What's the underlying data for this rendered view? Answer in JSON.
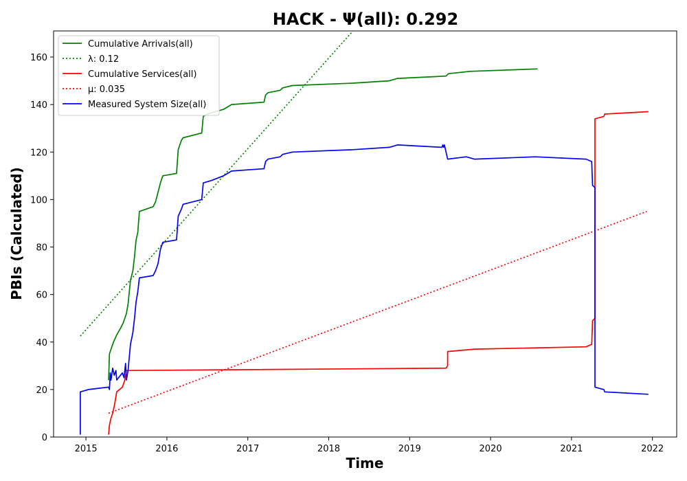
{
  "chart_data": {
    "type": "line",
    "title": "HACK -  Ψ(all): 0.292",
    "xlabel": "Time",
    "ylabel": "PBIs (Calculated)",
    "xlim": [
      2014.6,
      2022.3
    ],
    "ylim": [
      0,
      171
    ],
    "x_ticks": [
      2015,
      2016,
      2017,
      2018,
      2019,
      2020,
      2021,
      2022
    ],
    "y_ticks": [
      0,
      20,
      40,
      60,
      80,
      100,
      120,
      140,
      160
    ],
    "legend": "top-left",
    "grid": false,
    "series": [
      {
        "name": "Cumulative Arrivals(all)",
        "color": "#008000",
        "style": "solid",
        "points": [
          [
            2015.28,
            24
          ],
          [
            2015.29,
            35
          ],
          [
            2015.32,
            38
          ],
          [
            2015.34,
            40
          ],
          [
            2015.38,
            43
          ],
          [
            2015.43,
            46
          ],
          [
            2015.46,
            48
          ],
          [
            2015.5,
            52
          ],
          [
            2015.52,
            56
          ],
          [
            2015.55,
            66
          ],
          [
            2015.58,
            70
          ],
          [
            2015.6,
            76
          ],
          [
            2015.62,
            83
          ],
          [
            2015.64,
            86
          ],
          [
            2015.66,
            95
          ],
          [
            2015.83,
            97
          ],
          [
            2015.86,
            99
          ],
          [
            2015.89,
            103
          ],
          [
            2015.92,
            107
          ],
          [
            2015.95,
            110
          ],
          [
            2016.12,
            111
          ],
          [
            2016.14,
            121
          ],
          [
            2016.18,
            125
          ],
          [
            2016.2,
            126
          ],
          [
            2016.43,
            128
          ],
          [
            2016.45,
            135
          ],
          [
            2016.5,
            136
          ],
          [
            2016.7,
            138
          ],
          [
            2016.8,
            140
          ],
          [
            2017.2,
            141
          ],
          [
            2017.22,
            144
          ],
          [
            2017.25,
            145
          ],
          [
            2017.4,
            146
          ],
          [
            2017.43,
            147
          ],
          [
            2017.55,
            148
          ],
          [
            2018.3,
            149
          ],
          [
            2018.75,
            150
          ],
          [
            2018.85,
            151
          ],
          [
            2019.45,
            152
          ],
          [
            2019.48,
            153
          ],
          [
            2019.75,
            154
          ],
          [
            2020.58,
            155
          ]
        ]
      },
      {
        "name": "λ: 0.12",
        "color": "#008000",
        "style": "dotted",
        "points": [
          [
            2014.93,
            42.5
          ],
          [
            2018.3,
            171
          ]
        ]
      },
      {
        "name": "Cumulative Services(all)",
        "color": "#ff0000",
        "style": "solid",
        "points": [
          [
            2015.28,
            1
          ],
          [
            2015.29,
            5
          ],
          [
            2015.31,
            8
          ],
          [
            2015.33,
            10
          ],
          [
            2015.35,
            13
          ],
          [
            2015.38,
            19
          ],
          [
            2015.45,
            21
          ],
          [
            2015.48,
            24
          ],
          [
            2015.5,
            28
          ],
          [
            2019.45,
            29
          ],
          [
            2019.47,
            30
          ],
          [
            2019.47,
            36
          ],
          [
            2019.8,
            37
          ],
          [
            2021.18,
            38
          ],
          [
            2021.25,
            39
          ],
          [
            2021.26,
            49
          ],
          [
            2021.29,
            50
          ],
          [
            2021.29,
            134
          ],
          [
            2021.4,
            135
          ],
          [
            2021.41,
            136
          ],
          [
            2021.95,
            137
          ]
        ]
      },
      {
        "name": "μ: 0.035",
        "color": "#ff0000",
        "style": "dotted",
        "points": [
          [
            2015.28,
            10
          ],
          [
            2021.93,
            95
          ]
        ]
      },
      {
        "name": "Measured System Size(all)",
        "color": "#0000ff",
        "style": "solid",
        "points": [
          [
            2014.93,
            1
          ],
          [
            2014.93,
            19
          ],
          [
            2015.03,
            20
          ],
          [
            2015.28,
            21
          ],
          [
            2015.29,
            20
          ],
          [
            2015.3,
            27
          ],
          [
            2015.31,
            24
          ],
          [
            2015.33,
            29
          ],
          [
            2015.35,
            26
          ],
          [
            2015.37,
            28
          ],
          [
            2015.38,
            24
          ],
          [
            2015.45,
            27
          ],
          [
            2015.47,
            25
          ],
          [
            2015.49,
            31
          ],
          [
            2015.5,
            24
          ],
          [
            2015.52,
            28
          ],
          [
            2015.55,
            39
          ],
          [
            2015.58,
            44
          ],
          [
            2015.6,
            50
          ],
          [
            2015.62,
            57
          ],
          [
            2015.64,
            61
          ],
          [
            2015.66,
            67
          ],
          [
            2015.83,
            68
          ],
          [
            2015.86,
            70
          ],
          [
            2015.89,
            73
          ],
          [
            2015.92,
            79
          ],
          [
            2015.95,
            82
          ],
          [
            2016.12,
            83
          ],
          [
            2016.14,
            93
          ],
          [
            2016.18,
            96
          ],
          [
            2016.2,
            98
          ],
          [
            2016.43,
            100
          ],
          [
            2016.45,
            107
          ],
          [
            2016.55,
            108
          ],
          [
            2016.7,
            110
          ],
          [
            2016.8,
            112
          ],
          [
            2017.2,
            113
          ],
          [
            2017.22,
            116
          ],
          [
            2017.25,
            117
          ],
          [
            2017.4,
            118
          ],
          [
            2017.43,
            119
          ],
          [
            2017.55,
            120
          ],
          [
            2018.3,
            121
          ],
          [
            2018.75,
            122
          ],
          [
            2018.85,
            123
          ],
          [
            2019.4,
            122
          ],
          [
            2019.41,
            123
          ],
          [
            2019.42,
            122
          ],
          [
            2019.43,
            123
          ],
          [
            2019.47,
            117
          ],
          [
            2019.7,
            118
          ],
          [
            2019.8,
            117
          ],
          [
            2020.55,
            118
          ],
          [
            2021.18,
            117
          ],
          [
            2021.25,
            116
          ],
          [
            2021.26,
            106
          ],
          [
            2021.29,
            105
          ],
          [
            2021.29,
            21
          ],
          [
            2021.4,
            20
          ],
          [
            2021.41,
            19
          ],
          [
            2021.95,
            18
          ]
        ]
      }
    ]
  }
}
